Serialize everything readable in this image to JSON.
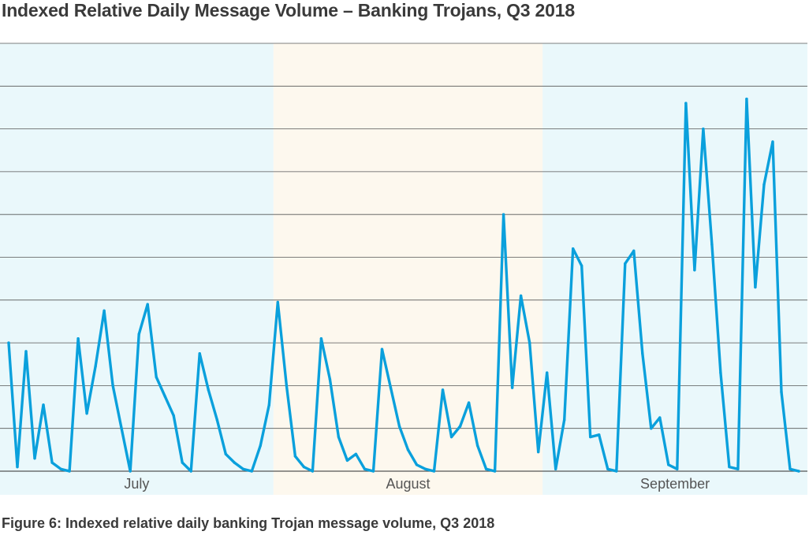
{
  "header": {
    "title": "Indexed Relative Daily Message Volume – Banking Trojans, Q3 2018"
  },
  "footer": {
    "caption": "Figure 6: Indexed relative daily banking Trojan message volume, Q3 2018"
  },
  "colors": {
    "line": "#0aa0dc",
    "july_band": "#eaf8fb",
    "august_band": "#fdf8ee",
    "september_band": "#eaf8fb",
    "gridline": "#555555"
  },
  "chart_data": {
    "type": "line",
    "title": "Indexed Relative Daily Message Volume – Banking Trojans, Q3 2018",
    "xlabel": "",
    "ylabel": "",
    "ylim": [
      0,
      100
    ],
    "grid": true,
    "gridline_count": 10,
    "categories": [
      "July",
      "August",
      "September"
    ],
    "month_bands": [
      {
        "label": "July",
        "start_day": 1,
        "end_day": 31
      },
      {
        "label": "August",
        "start_day": 32,
        "end_day": 62
      },
      {
        "label": "September",
        "start_day": 63,
        "end_day": 92
      }
    ],
    "series": [
      {
        "name": "Banking Trojans",
        "x": [
          1,
          2,
          3,
          4,
          5,
          6,
          7,
          8,
          9,
          10,
          11,
          12,
          13,
          14,
          15,
          16,
          17,
          18,
          19,
          20,
          21,
          22,
          23,
          24,
          25,
          26,
          27,
          28,
          29,
          30,
          31,
          32,
          33,
          34,
          35,
          36,
          37,
          38,
          39,
          40,
          41,
          42,
          43,
          44,
          45,
          46,
          47,
          48,
          49,
          50,
          51,
          52,
          53,
          54,
          55,
          56,
          57,
          58,
          59,
          60,
          61,
          62,
          63,
          64,
          65,
          66,
          67,
          68,
          69,
          70,
          71,
          72,
          73,
          74,
          75,
          76,
          77,
          78,
          79,
          80,
          81,
          82,
          83,
          84,
          85,
          86,
          87,
          88,
          89,
          90,
          91,
          92
        ],
        "values": [
          30,
          1,
          28,
          3,
          15.5,
          2,
          0.5,
          0,
          31,
          13.5,
          24.5,
          37.5,
          20,
          10,
          0,
          32,
          39,
          22,
          17.5,
          13,
          2,
          0,
          27.5,
          19,
          12,
          4,
          2,
          0.5,
          0,
          6,
          15.5,
          39.5,
          20,
          3.5,
          1,
          0,
          31,
          21.5,
          8,
          2.5,
          4,
          0.5,
          0,
          28.5,
          19.5,
          10.5,
          5,
          1.5,
          0.5,
          0,
          19,
          8,
          10.5,
          16,
          6,
          0.5,
          0,
          60,
          19.5,
          41,
          30,
          4.5,
          23,
          0.5,
          12,
          52,
          48,
          8,
          8.5,
          0.5,
          0,
          48.5,
          51.5,
          27.5,
          10,
          12.5,
          1.5,
          0.5,
          86,
          47,
          80,
          53,
          23,
          1,
          0.5,
          87,
          43,
          67,
          77,
          18.5,
          0.5,
          0
        ]
      }
    ]
  }
}
